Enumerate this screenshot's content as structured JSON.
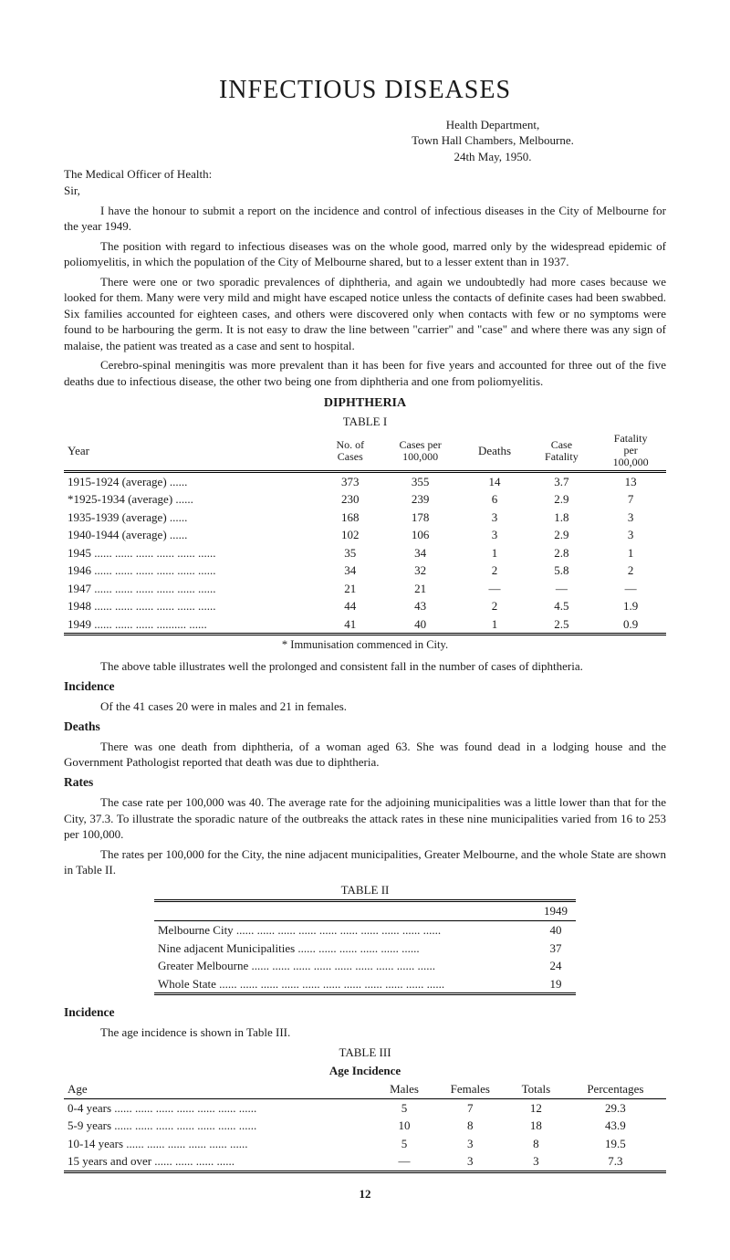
{
  "title": "INFECTIOUS DISEASES",
  "address": {
    "l1": "Health Department,",
    "l2": "Town Hall Chambers, Melbourne.",
    "l3": "24th May, 1950."
  },
  "recipient": "The Medical Officer of Health:",
  "salutation": "Sir,",
  "paragraphs": {
    "p1": "I have the honour to submit a report on the incidence and control of infectious diseases in the City of Melbourne for the year 1949.",
    "p2": "The position with regard to infectious diseases was on the whole good, marred only by the widespread epidemic of poliomyelitis, in which the population of the City of Melbourne shared, but to a lesser extent than in 1937.",
    "p3": "There were one or two sporadic prevalences of diphtheria, and again we undoubtedly had more cases because we looked for them. Many were very mild and might have escaped notice unless the contacts of definite cases had been swabbed. Six families accounted for eighteen cases, and others were discovered only when contacts with few or no symptoms were found to be harbouring the germ. It is not easy to draw the line between \"carrier\" and \"case\" and where there was any sign of malaise, the patient was treated as a case and sent to hospital.",
    "p4": "Cerebro-spinal meningitis was more prevalent than it has been for five years and accounted for three out of the five deaths due to infectious disease, the other two being one from diphtheria and one from poliomyelitis."
  },
  "t1": {
    "heading": "DIPHTHERIA",
    "label": "TABLE I",
    "cols": {
      "year": "Year",
      "cases": "No. of\nCases",
      "rate": "Cases per\n100,000",
      "deaths": "Deaths",
      "cf": "Case\nFatality",
      "fat": "Fatality\nper\n100,000"
    },
    "rows": [
      {
        "y": "1915-1924 (average) ......",
        "c": "373",
        "r": "355",
        "d": "14",
        "cf": "3.7",
        "f": "13"
      },
      {
        "y": "*1925-1934 (average) ......",
        "c": "230",
        "r": "239",
        "d": "6",
        "cf": "2.9",
        "f": "7"
      },
      {
        "y": "1935-1939 (average) ......",
        "c": "168",
        "r": "178",
        "d": "3",
        "cf": "1.8",
        "f": "3"
      },
      {
        "y": "1940-1944 (average) ......",
        "c": "102",
        "r": "106",
        "d": "3",
        "cf": "2.9",
        "f": "3"
      },
      {
        "y": "1945 ...... ...... ...... ...... ...... ......",
        "c": "35",
        "r": "34",
        "d": "1",
        "cf": "2.8",
        "f": "1"
      },
      {
        "y": "1946 ...... ...... ...... ...... ...... ......",
        "c": "34",
        "r": "32",
        "d": "2",
        "cf": "5.8",
        "f": "2"
      },
      {
        "y": "1947 ...... ...... ...... ...... ...... ......",
        "c": "21",
        "r": "21",
        "d": "—",
        "cf": "—",
        "f": "—"
      },
      {
        "y": "1948 ...... ...... ...... ...... ...... ......",
        "c": "44",
        "r": "43",
        "d": "2",
        "cf": "4.5",
        "f": "1.9"
      },
      {
        "y": "1949 ...... ...... ...... .......... ......",
        "c": "41",
        "r": "40",
        "d": "1",
        "cf": "2.5",
        "f": "0.9"
      }
    ],
    "footnote": "* Immunisation commenced in City."
  },
  "middle": {
    "p1": "The above table illustrates well the prolonged and consistent fall in the number of cases of diphtheria.",
    "incidence_h": "Incidence",
    "incidence_t": "Of the 41 cases 20 were in males and 21 in females.",
    "deaths_h": "Deaths",
    "deaths_t": "There was one death from diphtheria, of a woman aged 63. She was found dead in a lodging house and the Government Pathologist reported that death was due to diphtheria.",
    "rates_h": "Rates",
    "rates_t1": "The case rate per 100,000 was 40. The average rate for the adjoining municipalities was a little lower than that for the City, 37.3. To illustrate the sporadic nature of the outbreaks the attack rates in these nine municipalities varied from 16 to 253 per 100,000.",
    "rates_t2": "The rates per 100,000 for the City, the nine adjacent municipalities, Greater Melbourne, and the whole State are shown in Table II."
  },
  "t2": {
    "label": "TABLE II",
    "yearcol": "1949",
    "rows": [
      {
        "k": "Melbourne City ...... ...... ...... ...... ...... ...... ...... ...... ...... ......",
        "v": "40"
      },
      {
        "k": "Nine adjacent Municipalities ...... ...... ...... ...... ...... ......",
        "v": "37"
      },
      {
        "k": "Greater Melbourne ...... ...... ...... ...... ...... ...... ...... ...... ......",
        "v": "24"
      },
      {
        "k": "Whole State ...... ...... ...... ...... ...... ...... ...... ...... ...... ...... ......",
        "v": "19"
      }
    ]
  },
  "t3": {
    "incidence_h": "Incidence",
    "lead": "The age incidence is shown in Table III.",
    "label": "TABLE III",
    "sub": "Age Incidence",
    "cols": {
      "age": "Age",
      "m": "Males",
      "f": "Females",
      "t": "Totals",
      "p": "Percentages"
    },
    "rows": [
      {
        "a": "0-4 years ...... ...... ...... ...... ...... ...... ......",
        "m": "5",
        "f": "7",
        "t": "12",
        "p": "29.3"
      },
      {
        "a": "5-9 years ...... ...... ...... ...... ...... ...... ......",
        "m": "10",
        "f": "8",
        "t": "18",
        "p": "43.9"
      },
      {
        "a": "10-14 years ...... ...... ...... ...... ...... ......",
        "m": "5",
        "f": "3",
        "t": "8",
        "p": "19.5"
      },
      {
        "a": "15 years and over ...... ...... ...... ......",
        "m": "—",
        "f": "3",
        "t": "3",
        "p": "7.3"
      }
    ]
  },
  "pagenum": "12"
}
